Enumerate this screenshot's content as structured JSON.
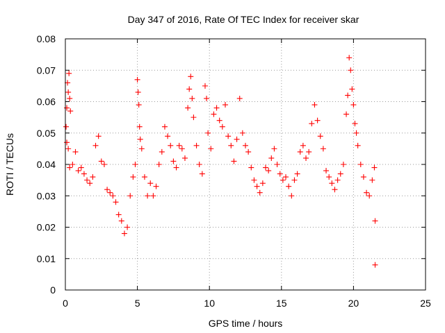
{
  "chart_data": {
    "type": "scatter",
    "title": "Day 347 of 2016, Rate Of TEC Index for receiver skar",
    "xlabel": "GPS time / hours",
    "ylabel": "ROTI / TECUs",
    "xlim": [
      0,
      25
    ],
    "ylim": [
      0,
      0.08
    ],
    "x_ticks": [
      "0",
      "5",
      "10",
      "15",
      "20",
      "25"
    ],
    "y_ticks": [
      "0",
      "0.01",
      "0.02",
      "0.03",
      "0.04",
      "0.05",
      "0.06",
      "0.07",
      "0.08"
    ],
    "grid": true,
    "marker": "plus",
    "color": "#ff0000",
    "points": [
      [
        0.05,
        0.052
      ],
      [
        0.1,
        0.058
      ],
      [
        0.15,
        0.066
      ],
      [
        0.2,
        0.063
      ],
      [
        0.25,
        0.069
      ],
      [
        0.3,
        0.061
      ],
      [
        0.35,
        0.057
      ],
      [
        0.1,
        0.047
      ],
      [
        0.2,
        0.045
      ],
      [
        0.3,
        0.039
      ],
      [
        0.5,
        0.04
      ],
      [
        0.7,
        0.044
      ],
      [
        0.9,
        0.038
      ],
      [
        1.1,
        0.039
      ],
      [
        1.3,
        0.037
      ],
      [
        1.5,
        0.035
      ],
      [
        1.7,
        0.034
      ],
      [
        1.9,
        0.036
      ],
      [
        2.1,
        0.046
      ],
      [
        2.3,
        0.049
      ],
      [
        2.5,
        0.041
      ],
      [
        2.7,
        0.04
      ],
      [
        2.9,
        0.032
      ],
      [
        3.1,
        0.031
      ],
      [
        3.3,
        0.03
      ],
      [
        3.5,
        0.028
      ],
      [
        3.7,
        0.024
      ],
      [
        3.9,
        0.022
      ],
      [
        4.1,
        0.018
      ],
      [
        4.3,
        0.02
      ],
      [
        4.5,
        0.03
      ],
      [
        4.7,
        0.036
      ],
      [
        4.85,
        0.04
      ],
      [
        5.0,
        0.067
      ],
      [
        5.05,
        0.063
      ],
      [
        5.1,
        0.059
      ],
      [
        5.15,
        0.052
      ],
      [
        5.2,
        0.048
      ],
      [
        5.3,
        0.045
      ],
      [
        5.5,
        0.036
      ],
      [
        5.7,
        0.03
      ],
      [
        5.9,
        0.034
      ],
      [
        6.1,
        0.03
      ],
      [
        6.3,
        0.033
      ],
      [
        6.5,
        0.04
      ],
      [
        6.7,
        0.044
      ],
      [
        6.9,
        0.052
      ],
      [
        7.1,
        0.049
      ],
      [
        7.3,
        0.046
      ],
      [
        7.5,
        0.041
      ],
      [
        7.7,
        0.039
      ],
      [
        7.9,
        0.046
      ],
      [
        8.1,
        0.045
      ],
      [
        8.3,
        0.042
      ],
      [
        8.5,
        0.058
      ],
      [
        8.6,
        0.064
      ],
      [
        8.7,
        0.068
      ],
      [
        8.8,
        0.061
      ],
      [
        8.9,
        0.055
      ],
      [
        9.1,
        0.046
      ],
      [
        9.3,
        0.04
      ],
      [
        9.5,
        0.037
      ],
      [
        9.7,
        0.065
      ],
      [
        9.8,
        0.061
      ],
      [
        9.9,
        0.05
      ],
      [
        10.1,
        0.045
      ],
      [
        10.3,
        0.056
      ],
      [
        10.5,
        0.058
      ],
      [
        10.7,
        0.054
      ],
      [
        10.9,
        0.052
      ],
      [
        11.1,
        0.059
      ],
      [
        11.3,
        0.049
      ],
      [
        11.5,
        0.046
      ],
      [
        11.7,
        0.041
      ],
      [
        11.9,
        0.048
      ],
      [
        12.1,
        0.061
      ],
      [
        12.3,
        0.05
      ],
      [
        12.5,
        0.046
      ],
      [
        12.7,
        0.044
      ],
      [
        12.9,
        0.039
      ],
      [
        13.1,
        0.035
      ],
      [
        13.3,
        0.033
      ],
      [
        13.5,
        0.031
      ],
      [
        13.7,
        0.034
      ],
      [
        13.9,
        0.039
      ],
      [
        14.1,
        0.038
      ],
      [
        14.3,
        0.042
      ],
      [
        14.5,
        0.045
      ],
      [
        14.7,
        0.04
      ],
      [
        14.9,
        0.037
      ],
      [
        15.1,
        0.035
      ],
      [
        15.3,
        0.036
      ],
      [
        15.5,
        0.033
      ],
      [
        15.7,
        0.03
      ],
      [
        15.9,
        0.035
      ],
      [
        16.1,
        0.037
      ],
      [
        16.3,
        0.044
      ],
      [
        16.5,
        0.046
      ],
      [
        16.7,
        0.042
      ],
      [
        16.9,
        0.044
      ],
      [
        17.1,
        0.053
      ],
      [
        17.3,
        0.059
      ],
      [
        17.5,
        0.054
      ],
      [
        17.7,
        0.049
      ],
      [
        17.9,
        0.045
      ],
      [
        18.1,
        0.038
      ],
      [
        18.3,
        0.036
      ],
      [
        18.5,
        0.034
      ],
      [
        18.7,
        0.032
      ],
      [
        18.9,
        0.035
      ],
      [
        19.1,
        0.037
      ],
      [
        19.3,
        0.04
      ],
      [
        19.5,
        0.056
      ],
      [
        19.6,
        0.062
      ],
      [
        19.7,
        0.074
      ],
      [
        19.8,
        0.07
      ],
      [
        19.9,
        0.064
      ],
      [
        20.0,
        0.059
      ],
      [
        20.1,
        0.053
      ],
      [
        20.2,
        0.05
      ],
      [
        20.3,
        0.046
      ],
      [
        20.5,
        0.04
      ],
      [
        20.7,
        0.036
      ],
      [
        20.9,
        0.031
      ],
      [
        21.1,
        0.03
      ],
      [
        21.3,
        0.035
      ],
      [
        21.45,
        0.039
      ],
      [
        21.5,
        0.022
      ],
      [
        21.5,
        0.008
      ]
    ]
  }
}
